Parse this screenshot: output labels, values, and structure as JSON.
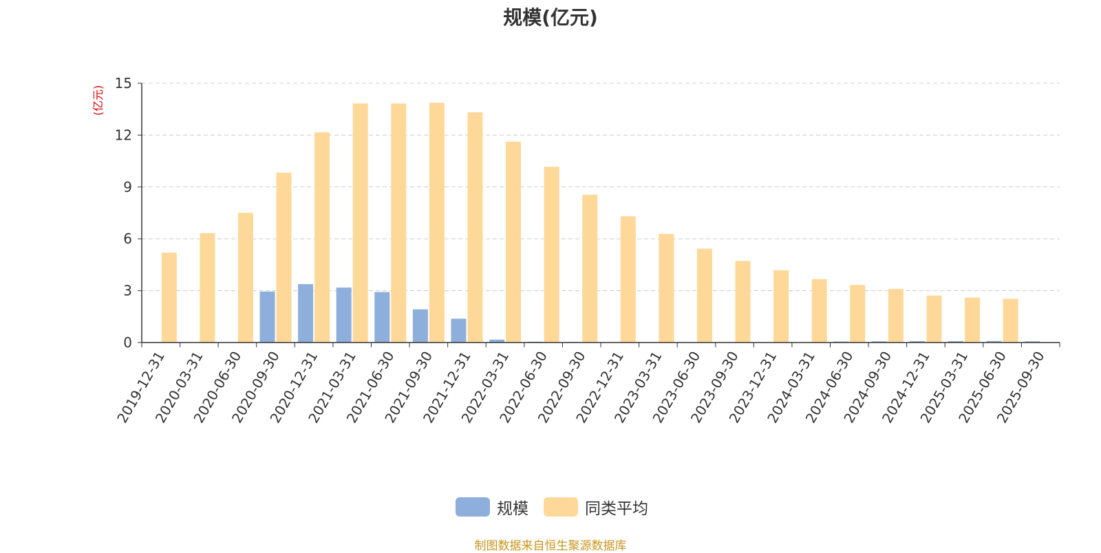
{
  "chart_data": {
    "type": "bar",
    "title": "规模(亿元)",
    "ylabel": "(亿元)",
    "ylim": [
      0,
      15
    ],
    "yticks": [
      0,
      3,
      6,
      9,
      12,
      15
    ],
    "grid": true,
    "legend_position": "bottom-center",
    "categories": [
      "2019-12-31",
      "2020-03-31",
      "2020-06-30",
      "2020-09-30",
      "2020-12-31",
      "2021-03-31",
      "2021-06-30",
      "2021-09-30",
      "2021-12-31",
      "2022-03-31",
      "2022-06-30",
      "2022-09-30",
      "2022-12-31",
      "2023-03-31",
      "2023-06-30",
      "2023-09-30",
      "2023-12-31",
      "2024-03-31",
      "2024-06-30",
      "2024-09-30",
      "2024-12-31",
      "2025-03-31",
      "2025-06-30",
      "2025-09-30"
    ],
    "series": [
      {
        "name": "规模",
        "color": "#8eaedc",
        "values": [
          0,
          0,
          0,
          2.95,
          3.38,
          3.18,
          2.92,
          1.92,
          1.38,
          0.17,
          0.05,
          0.03,
          0.02,
          0.02,
          0.02,
          0.02,
          0.02,
          0.02,
          0.06,
          0.07,
          0.08,
          0.08,
          0.09,
          0.07
        ]
      },
      {
        "name": "同类平均",
        "color": "#fed899",
        "values": [
          5.2,
          6.33,
          7.5,
          9.83,
          12.16,
          13.83,
          13.83,
          13.87,
          13.32,
          11.62,
          10.17,
          8.55,
          7.3,
          6.28,
          5.43,
          4.72,
          4.18,
          3.67,
          3.33,
          3.1,
          2.72,
          2.6,
          2.53,
          null
        ]
      }
    ]
  },
  "source_note": "制图数据来自恒生聚源数据库",
  "colors": {
    "axis": "#333333",
    "grid": "#cccccc",
    "ylabel": "#e00000"
  }
}
